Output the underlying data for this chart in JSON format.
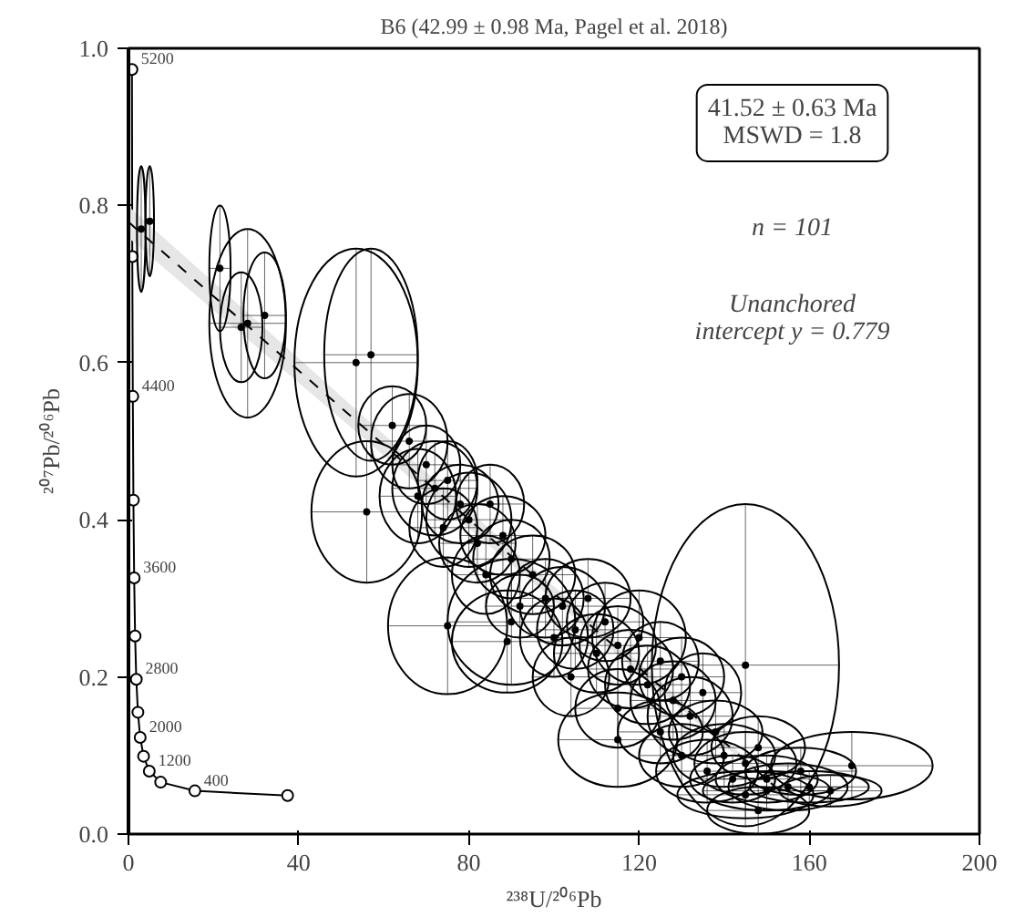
{
  "chart_data": {
    "type": "scatter",
    "title": "B6 (42.99 ± 0.98 Ma, Pagel et al. 2018)",
    "xlabel": "²³⁸U/²⁰⁶Pb",
    "ylabel": "²⁰⁷Pb/²⁰⁶Pb",
    "xlim": [
      0,
      200
    ],
    "xticks": [
      0,
      40,
      80,
      120,
      160,
      200
    ],
    "ylim": [
      0,
      1.0
    ],
    "yticks": [
      {
        "value": 0,
        "label": "0.0"
      },
      0.2,
      0.4,
      0.6,
      0.8,
      {
        "value": 1.0,
        "label": "1.0"
      }
    ],
    "grid": false,
    "annotations": [
      "41.52 ± 0.63 Ma\nMSWD = 1.8",
      "n = 101",
      "Unanchored\nintercept y = 0.779",
      {
        "text": "5200",
        "x": 0.81,
        "y": 0.973
      },
      {
        "text": "4400",
        "x": 1.02,
        "y": 0.557
      },
      {
        "text": "3600",
        "x": 1.34,
        "y": 0.326
      },
      {
        "text": "2800",
        "x": 1.84,
        "y": 0.197
      },
      {
        "text": "2000",
        "x": 2.75,
        "y": 0.123
      },
      {
        "text": "1200",
        "x": 4.89,
        "y": 0.08
      },
      {
        "text": "400",
        "x": 15.6,
        "y": 0.055
      }
    ],
    "series": [
      {
        "type": "line",
        "color": "#000000",
        "marker": "circle",
        "x": [
          0.81,
          0.9,
          1.02,
          1.16,
          1.34,
          1.56,
          1.84,
          2.22,
          2.75,
          3.55,
          4.89,
          7.57,
          15.6,
          37.4
        ],
        "values": [
          0.973,
          0.735,
          0.557,
          0.425,
          0.326,
          0.252,
          0.197,
          0.155,
          0.123,
          0.099,
          0.08,
          0.066,
          0.055,
          0.049
        ]
      },
      {
        "type": "line",
        "color": "#000000",
        "line_style": "dashed",
        "x": [
          0,
          154.8
        ],
        "values": [
          0.779,
          0.047
        ],
        "lower": [
          0.759,
          0.044
        ],
        "upper": [
          0.799,
          0.05
        ]
      },
      {
        "color": "#000000",
        "marker": "circle",
        "x": [
          3,
          5,
          21.5,
          28,
          26.5,
          32,
          53.5,
          57,
          56,
          75,
          89,
          145,
          170,
          62,
          66,
          70,
          72,
          68,
          75,
          78,
          80,
          74,
          82,
          85,
          88,
          90,
          84,
          95,
          98,
          92,
          102,
          105,
          100,
          108,
          112,
          110,
          115,
          118,
          104,
          120,
          122,
          125,
          128,
          115,
          130,
          132,
          135,
          125,
          138,
          140,
          130,
          145,
          148,
          150,
          142,
          155,
          160,
          150,
          165,
          145,
          158,
          136,
          90,
          115,
          148
        ],
        "values": [
          0.77,
          0.78,
          0.72,
          0.65,
          0.645,
          0.66,
          0.6,
          0.61,
          0.41,
          0.265,
          0.245,
          0.215,
          0.087,
          0.52,
          0.5,
          0.47,
          0.44,
          0.43,
          0.45,
          0.42,
          0.4,
          0.39,
          0.37,
          0.42,
          0.38,
          0.35,
          0.33,
          0.33,
          0.3,
          0.29,
          0.29,
          0.26,
          0.25,
          0.3,
          0.27,
          0.23,
          0.24,
          0.21,
          0.2,
          0.25,
          0.19,
          0.22,
          0.17,
          0.16,
          0.2,
          0.15,
          0.18,
          0.13,
          0.13,
          0.1,
          0.1,
          0.09,
          0.11,
          0.07,
          0.07,
          0.06,
          0.06,
          0.055,
          0.055,
          0.05,
          0.08,
          0.08,
          0.27,
          0.12,
          0.03
        ],
        "xerrors": [
          1,
          1,
          2.5,
          9,
          5,
          5,
          14.5,
          11,
          13,
          14,
          13,
          22,
          19,
          8,
          9,
          8,
          10,
          9,
          7,
          9,
          10,
          8,
          9,
          8,
          10,
          9,
          8,
          10,
          9,
          8,
          10,
          9,
          8,
          10,
          9,
          10,
          9,
          10,
          9,
          11,
          10,
          9,
          10,
          10,
          10,
          10,
          9,
          10,
          11,
          12,
          10,
          12,
          11,
          12,
          10,
          14,
          14,
          15,
          12,
          16,
          13,
          12,
          15,
          14,
          12
        ],
        "errors": [
          0.08,
          0.07,
          0.08,
          0.12,
          0.07,
          0.08,
          0.145,
          0.135,
          0.09,
          0.087,
          0.065,
          0.205,
          0.043,
          0.05,
          0.06,
          0.05,
          0.06,
          0.06,
          0.05,
          0.05,
          0.06,
          0.05,
          0.05,
          0.05,
          0.05,
          0.05,
          0.05,
          0.05,
          0.05,
          0.04,
          0.05,
          0.05,
          0.05,
          0.05,
          0.05,
          0.05,
          0.05,
          0.05,
          0.05,
          0.06,
          0.05,
          0.05,
          0.05,
          0.05,
          0.05,
          0.05,
          0.05,
          0.04,
          0.04,
          0.04,
          0.04,
          0.04,
          0.04,
          0.03,
          0.03,
          0.03,
          0.02,
          0.025,
          0.02,
          0.03,
          0.03,
          0.04,
          0.08,
          0.06,
          0.03
        ]
      }
    ]
  }
}
